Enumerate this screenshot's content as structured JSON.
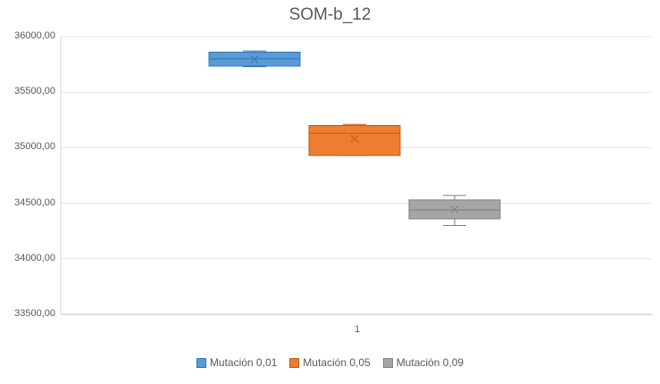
{
  "chart_data": {
    "type": "box",
    "title": "SOM-b_12",
    "categories": [
      "1"
    ],
    "y_ticks": [
      "33500,00",
      "34000,00",
      "34500,00",
      "35000,00",
      "35500,00",
      "36000,00"
    ],
    "ylim": [
      33500,
      36000
    ],
    "grid": true,
    "legend_position": "bottom",
    "series": [
      {
        "name": "Mutación 0,01",
        "color": "#5B9BD5",
        "edge": "#2E75B6",
        "min": 35730,
        "q1": 35735,
        "median": 35800,
        "mean": 35795,
        "q3": 35860,
        "max": 35870
      },
      {
        "name": "Mutación 0,05",
        "color": "#ED7D31",
        "edge": "#C55A11",
        "min": 34930,
        "q1": 34930,
        "median": 35130,
        "mean": 35080,
        "q3": 35200,
        "max": 35210
      },
      {
        "name": "Mutación 0,09",
        "color": "#A5A5A5",
        "edge": "#7F7F7F",
        "min": 34300,
        "q1": 34360,
        "median": 34440,
        "mean": 34445,
        "q3": 34530,
        "max": 34570
      }
    ]
  }
}
